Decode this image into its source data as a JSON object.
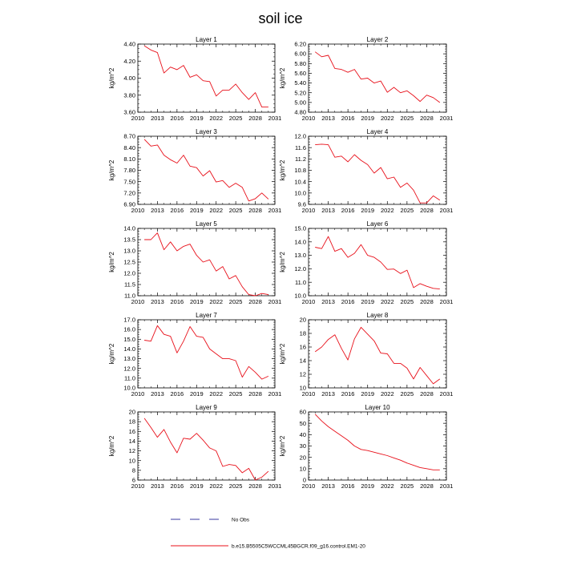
{
  "title": "soil ice",
  "legend": {
    "obs_label": "No Obs",
    "model_label": "b.e15.B5505C5WCCML45BGCR.f09_g16.control.EM1-20",
    "model_color": "#e8101a",
    "obs_color": "#3a3aa0"
  },
  "chart_data": [
    {
      "type": "line",
      "title": "Layer 1",
      "ylabel": "kg/m^2",
      "xlim": [
        2010,
        2031
      ],
      "ylim": [
        3.6,
        4.4
      ],
      "yticks": [
        3.6,
        3.8,
        4.0,
        4.2,
        4.4
      ],
      "ytick_labels": [
        "3.60",
        "3.80",
        "4.00",
        "4.20",
        "4.40"
      ],
      "x": [
        2011,
        2012,
        2013,
        2014,
        2015,
        2016,
        2017,
        2018,
        2019,
        2020,
        2021,
        2022,
        2023,
        2024,
        2025,
        2026,
        2027,
        2028,
        2029,
        2030
      ],
      "values": [
        4.38,
        4.33,
        4.3,
        4.06,
        4.13,
        4.1,
        4.15,
        4.01,
        4.04,
        3.97,
        3.96,
        3.79,
        3.86,
        3.86,
        3.93,
        3.83,
        3.75,
        3.83,
        3.66,
        3.66
      ]
    },
    {
      "type": "line",
      "title": "Layer 2",
      "ylabel": "kg/m^2",
      "xlim": [
        2010,
        2031
      ],
      "ylim": [
        4.8,
        6.2
      ],
      "yticks": [
        4.8,
        5.0,
        5.2,
        5.4,
        5.6,
        5.8,
        6.0,
        6.2
      ],
      "ytick_labels": [
        "4.80",
        "5.00",
        "5.20",
        "5.40",
        "5.60",
        "5.80",
        "6.00",
        "6.20"
      ],
      "x": [
        2011,
        2012,
        2013,
        2014,
        2015,
        2016,
        2017,
        2018,
        2019,
        2020,
        2021,
        2022,
        2023,
        2024,
        2025,
        2026,
        2027,
        2028,
        2029,
        2030
      ],
      "values": [
        6.04,
        5.94,
        5.97,
        5.7,
        5.68,
        5.62,
        5.68,
        5.48,
        5.5,
        5.4,
        5.44,
        5.21,
        5.31,
        5.2,
        5.24,
        5.14,
        5.02,
        5.15,
        5.1,
        5.0
      ]
    },
    {
      "type": "line",
      "title": "Layer 3",
      "ylabel": "kg/m^2",
      "xlim": [
        2010,
        2031
      ],
      "ylim": [
        6.9,
        8.7
      ],
      "yticks": [
        6.9,
        7.2,
        7.5,
        7.8,
        8.1,
        8.4,
        8.7
      ],
      "ytick_labels": [
        "6.90",
        "7.20",
        "7.50",
        "7.80",
        "8.10",
        "8.40",
        "8.70"
      ],
      "x": [
        2011,
        2012,
        2013,
        2014,
        2015,
        2016,
        2017,
        2018,
        2019,
        2020,
        2021,
        2022,
        2023,
        2024,
        2025,
        2026,
        2027,
        2028,
        2029,
        2030
      ],
      "values": [
        8.62,
        8.44,
        8.47,
        8.2,
        8.08,
        7.99,
        8.2,
        7.91,
        7.87,
        7.65,
        7.79,
        7.49,
        7.53,
        7.35,
        7.46,
        7.35,
        6.99,
        7.05,
        7.2,
        7.04
      ]
    },
    {
      "type": "line",
      "title": "Layer 4",
      "ylabel": "kg/m^2",
      "xlim": [
        2010,
        2031
      ],
      "ylim": [
        9.6,
        12.0
      ],
      "yticks": [
        9.6,
        10.0,
        10.4,
        10.8,
        11.2,
        11.6,
        12.0
      ],
      "ytick_labels": [
        "9.6",
        "10.0",
        "10.4",
        "10.8",
        "11.2",
        "11.6",
        "12.0"
      ],
      "x": [
        2011,
        2012,
        2013,
        2014,
        2015,
        2016,
        2017,
        2018,
        2019,
        2020,
        2021,
        2022,
        2023,
        2024,
        2025,
        2026,
        2027,
        2028,
        2029,
        2030
      ],
      "values": [
        11.7,
        11.72,
        11.7,
        11.26,
        11.3,
        11.1,
        11.35,
        11.15,
        11.0,
        10.7,
        10.9,
        10.5,
        10.56,
        10.2,
        10.35,
        10.1,
        9.65,
        9.65,
        9.9,
        9.75
      ]
    },
    {
      "type": "line",
      "title": "Layer 5",
      "ylabel": "kg/m^2",
      "xlim": [
        2010,
        2031
      ],
      "ylim": [
        11.0,
        14.0
      ],
      "yticks": [
        11.0,
        11.5,
        12.0,
        12.5,
        13.0,
        13.5,
        14.0
      ],
      "ytick_labels": [
        "11.0",
        "11.5",
        "12.0",
        "12.5",
        "13.0",
        "13.5",
        "14.0"
      ],
      "x": [
        2011,
        2012,
        2013,
        2014,
        2015,
        2016,
        2017,
        2018,
        2019,
        2020,
        2021,
        2022,
        2023,
        2024,
        2025,
        2026,
        2027,
        2028,
        2029,
        2030
      ],
      "values": [
        13.5,
        13.5,
        13.8,
        13.05,
        13.4,
        13.0,
        13.2,
        13.3,
        12.8,
        12.5,
        12.6,
        12.1,
        12.3,
        11.75,
        11.9,
        11.4,
        11.05,
        11.0,
        11.1,
        11.05
      ]
    },
    {
      "type": "line",
      "title": "Layer 6",
      "ylabel": "kg/m^2",
      "xlim": [
        2010,
        2031
      ],
      "ylim": [
        10.0,
        15.0
      ],
      "yticks": [
        10.0,
        11.0,
        12.0,
        13.0,
        14.0,
        15.0
      ],
      "ytick_labels": [
        "10.0",
        "11.0",
        "12.0",
        "13.0",
        "14.0",
        "15.0"
      ],
      "x": [
        2011,
        2012,
        2013,
        2014,
        2015,
        2016,
        2017,
        2018,
        2019,
        2020,
        2021,
        2022,
        2023,
        2024,
        2025,
        2026,
        2027,
        2028,
        2029,
        2030
      ],
      "values": [
        13.6,
        13.5,
        14.4,
        13.3,
        13.5,
        12.85,
        13.15,
        13.8,
        13.0,
        12.85,
        12.5,
        11.95,
        11.98,
        11.65,
        11.9,
        10.6,
        10.9,
        10.7,
        10.55,
        10.5
      ]
    },
    {
      "type": "line",
      "title": "Layer 7",
      "ylabel": "kg/m^2",
      "xlim": [
        2010,
        2031
      ],
      "ylim": [
        10.0,
        17.0
      ],
      "yticks": [
        10.0,
        11.0,
        12.0,
        13.0,
        14.0,
        15.0,
        16.0,
        17.0
      ],
      "ytick_labels": [
        "10.0",
        "11.0",
        "12.0",
        "13.0",
        "14.0",
        "15.0",
        "16.0",
        "17.0"
      ],
      "x": [
        2011,
        2012,
        2013,
        2014,
        2015,
        2016,
        2017,
        2018,
        2019,
        2020,
        2021,
        2022,
        2023,
        2024,
        2025,
        2026,
        2027,
        2028,
        2029,
        2030
      ],
      "values": [
        14.9,
        14.8,
        16.4,
        15.5,
        15.3,
        13.6,
        14.8,
        16.3,
        15.3,
        15.2,
        14.0,
        13.5,
        13.0,
        13.0,
        12.8,
        11.1,
        12.2,
        11.6,
        10.9,
        11.2
      ]
    },
    {
      "type": "line",
      "title": "Layer 8",
      "ylabel": "kg/m^2",
      "xlim": [
        2010,
        2031
      ],
      "ylim": [
        10,
        20
      ],
      "yticks": [
        10,
        12,
        14,
        16,
        18,
        20
      ],
      "ytick_labels": [
        "10",
        "12",
        "14",
        "16",
        "18",
        "20"
      ],
      "x": [
        2011,
        2012,
        2013,
        2014,
        2015,
        2016,
        2017,
        2018,
        2019,
        2020,
        2021,
        2022,
        2023,
        2024,
        2025,
        2026,
        2027,
        2028,
        2029,
        2030
      ],
      "values": [
        15.3,
        16.0,
        17.1,
        17.8,
        15.8,
        14.1,
        17.2,
        18.9,
        17.9,
        16.9,
        15.1,
        15.0,
        13.6,
        13.6,
        12.9,
        11.3,
        13.0,
        11.8,
        10.6,
        11.3
      ]
    },
    {
      "type": "line",
      "title": "Layer 9",
      "ylabel": "kg/m^2",
      "xlim": [
        2010,
        2031
      ],
      "ylim": [
        6,
        20
      ],
      "yticks": [
        6,
        8,
        10,
        12,
        14,
        16,
        18,
        20
      ],
      "ytick_labels": [
        "6",
        "8",
        "10",
        "12",
        "14",
        "16",
        "18",
        "20"
      ],
      "x": [
        2011,
        2012,
        2013,
        2014,
        2015,
        2016,
        2017,
        2018,
        2019,
        2020,
        2021,
        2022,
        2023,
        2024,
        2025,
        2026,
        2027,
        2028,
        2029,
        2030
      ],
      "values": [
        18.7,
        16.8,
        14.8,
        16.4,
        13.8,
        11.6,
        14.6,
        14.4,
        15.6,
        14.2,
        12.6,
        12.0,
        8.8,
        9.2,
        9.0,
        7.5,
        8.4,
        6.0,
        6.6,
        7.8
      ]
    },
    {
      "type": "line",
      "title": "Layer 10",
      "ylabel": "kg/m^2",
      "xlim": [
        2010,
        2031
      ],
      "ylim": [
        0,
        60
      ],
      "yticks": [
        0,
        10,
        20,
        30,
        40,
        50,
        60
      ],
      "ytick_labels": [
        "0",
        "10",
        "20",
        "30",
        "40",
        "50",
        "60"
      ],
      "x": [
        2011,
        2012,
        2013,
        2014,
        2015,
        2016,
        2017,
        2018,
        2019,
        2020,
        2021,
        2022,
        2023,
        2024,
        2025,
        2026,
        2027,
        2028,
        2029,
        2030
      ],
      "values": [
        58,
        52,
        47,
        43,
        39,
        35,
        30,
        27,
        26,
        24.5,
        23,
        21.5,
        19.5,
        17.5,
        15,
        13,
        11,
        10,
        9,
        9
      ]
    }
  ],
  "xticks": [
    2010,
    2013,
    2016,
    2019,
    2022,
    2025,
    2028,
    2031
  ],
  "xtick_labels": [
    "2010",
    "2013",
    "2016",
    "2019",
    "2022",
    "2025",
    "2028",
    "2031"
  ]
}
